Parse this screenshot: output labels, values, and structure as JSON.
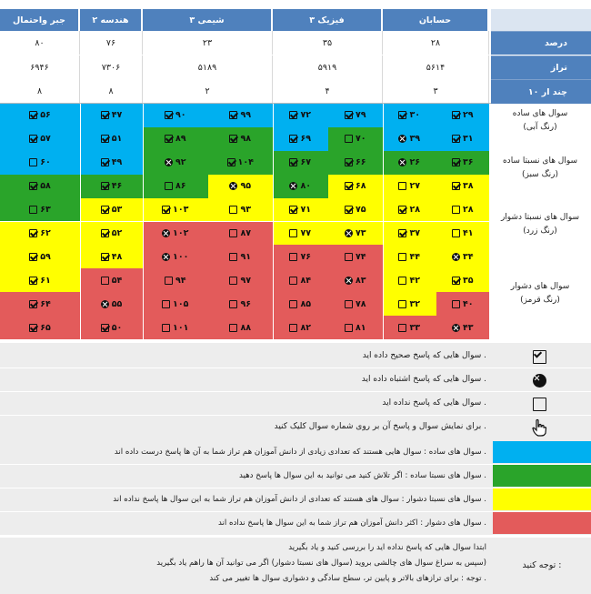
{
  "subjects": [
    "حسابان",
    "فیزیک ۳",
    "شیمی ۳",
    "هندسه ۲",
    "جبر واحتمال"
  ],
  "row_labels": [
    "درصد",
    "تراز",
    "چند ار ۱۰"
  ],
  "stats": {
    "percent": [
      "۲۸",
      "۳۵",
      "۲۳",
      "۷۶",
      "۸۰"
    ],
    "taraz": [
      "۵۶۱۴",
      "۵۹۱۹",
      "۵۱۸۹",
      "۷۳۰۶",
      "۶۹۴۶"
    ],
    "of10": [
      "۳",
      "۴",
      "۲",
      "۸",
      "۸"
    ]
  },
  "categories": [
    {
      "title": "سوال های ساده",
      "subtitle": "(رنگ آبی)"
    },
    {
      "title": "سوال های نسبتا ساده",
      "subtitle": "(رنگ سبز)"
    },
    {
      "title": "سوال های نسبتا دشوار",
      "subtitle": "(رنگ زرد)"
    },
    {
      "title": "سوال های دشوار",
      "subtitle": "(رنگ قرمز)"
    }
  ],
  "colors": {
    "blue": "#00b0f0",
    "green": "#2aa42a",
    "yellow": "#ffff00",
    "red": "#e35b5b",
    "header": "#4f81bd",
    "legend_bg": "#ededed"
  },
  "grid": [
    [
      [
        [
          "۲۹",
          "c",
          "B"
        ],
        [
          "۳۰",
          "c",
          "B"
        ]
      ],
      [
        [
          "۷۹",
          "c",
          "B"
        ],
        [
          "۷۲",
          "c",
          "B"
        ]
      ],
      [
        [
          "۹۹",
          "c",
          "B"
        ],
        [
          "۹۰",
          "c",
          "B"
        ]
      ],
      [
        [
          "۴۷",
          "c",
          "B"
        ]
      ],
      [
        [
          "۵۶",
          "c",
          "B"
        ]
      ]
    ],
    [
      [
        [
          "۳۱",
          "c",
          "B"
        ],
        [
          "۳۹",
          "w",
          "B"
        ]
      ],
      [
        [
          "۷۰",
          "e",
          "G"
        ],
        [
          "۶۹",
          "c",
          "B"
        ]
      ],
      [
        [
          "۹۸",
          "c",
          "G"
        ],
        [
          "۸۹",
          "c",
          "G"
        ]
      ],
      [
        [
          "۵۱",
          "c",
          "B"
        ]
      ],
      [
        [
          "۵۷",
          "c",
          "B"
        ]
      ]
    ],
    [
      [
        [
          "۳۶",
          "c",
          "G"
        ],
        [
          "۲۶",
          "w",
          "G"
        ]
      ],
      [
        [
          "۶۶",
          "c",
          "G"
        ],
        [
          "۶۷",
          "c",
          "G"
        ]
      ],
      [
        [
          "۱۰۴",
          "c",
          "G"
        ],
        [
          "۹۲",
          "w",
          "G"
        ]
      ],
      [
        [
          "۴۹",
          "c",
          "B"
        ]
      ],
      [
        [
          "۶۰",
          "e",
          "B"
        ]
      ]
    ],
    [
      [
        [
          "۳۸",
          "c",
          "Y"
        ],
        [
          "۲۷",
          "e",
          "Y"
        ]
      ],
      [
        [
          "۶۸",
          "c",
          "Y"
        ],
        [
          "۸۰",
          "w",
          "G"
        ]
      ],
      [
        [
          "۹۵",
          "w",
          "Y"
        ],
        [
          "۸۶",
          "e",
          "G"
        ]
      ],
      [
        [
          "۴۶",
          "c",
          "G"
        ]
      ],
      [
        [
          "۵۸",
          "c",
          "G"
        ]
      ]
    ],
    [
      [
        [
          "۲۸",
          "e",
          "Y"
        ],
        [
          "۲۸",
          "c",
          "Y"
        ]
      ],
      [
        [
          "۷۵",
          "c",
          "Y"
        ],
        [
          "۷۱",
          "c",
          "Y"
        ]
      ],
      [
        [
          "۹۳",
          "e",
          "Y"
        ],
        [
          "۱۰۳",
          "c",
          "Y"
        ]
      ],
      [
        [
          "۵۳",
          "c",
          "Y"
        ]
      ],
      [
        [
          "۶۳",
          "e",
          "G"
        ]
      ]
    ],
    [
      [
        [
          "۴۱",
          "e",
          "Y"
        ],
        [
          "۳۷",
          "c",
          "Y"
        ]
      ],
      [
        [
          "۷۳",
          "w",
          "Y"
        ],
        [
          "۷۷",
          "e",
          "Y"
        ]
      ],
      [
        [
          "۸۷",
          "e",
          "R"
        ],
        [
          "۱۰۲",
          "w",
          "R"
        ]
      ],
      [
        [
          "۵۲",
          "c",
          "Y"
        ]
      ],
      [
        [
          "۶۲",
          "c",
          "Y"
        ]
      ]
    ],
    [
      [
        [
          "۳۴",
          "w",
          "Y"
        ],
        [
          "۴۴",
          "e",
          "Y"
        ]
      ],
      [
        [
          "۷۴",
          "e",
          "R"
        ],
        [
          "۷۶",
          "e",
          "R"
        ]
      ],
      [
        [
          "۹۱",
          "e",
          "R"
        ],
        [
          "۱۰۰",
          "w",
          "R"
        ]
      ],
      [
        [
          "۴۸",
          "c",
          "Y"
        ]
      ],
      [
        [
          "۵۹",
          "c",
          "Y"
        ]
      ]
    ],
    [
      [
        [
          "۳۵",
          "c",
          "Y"
        ],
        [
          "۴۲",
          "e",
          "Y"
        ]
      ],
      [
        [
          "۸۳",
          "w",
          "R"
        ],
        [
          "۸۴",
          "e",
          "R"
        ]
      ],
      [
        [
          "۹۷",
          "e",
          "R"
        ],
        [
          "۹۴",
          "e",
          "R"
        ]
      ],
      [
        [
          "۵۴",
          "e",
          "R"
        ]
      ],
      [
        [
          "۶۱",
          "c",
          "Y"
        ]
      ]
    ],
    [
      [
        [
          "۴۰",
          "e",
          "R"
        ],
        [
          "۳۲",
          "e",
          "Y"
        ]
      ],
      [
        [
          "۷۸",
          "e",
          "R"
        ],
        [
          "۸۵",
          "e",
          "R"
        ]
      ],
      [
        [
          "۹۶",
          "e",
          "R"
        ],
        [
          "۱۰۵",
          "e",
          "R"
        ]
      ],
      [
        [
          "۵۵",
          "w",
          "R"
        ]
      ],
      [
        [
          "۶۴",
          "c",
          "R"
        ]
      ]
    ],
    [
      [
        [
          "۴۳",
          "w",
          "R"
        ],
        [
          "۳۳",
          "e",
          "R"
        ]
      ],
      [
        [
          "۸۱",
          "e",
          "R"
        ],
        [
          "۸۲",
          "e",
          "R"
        ]
      ],
      [
        [
          "۸۸",
          "e",
          "R"
        ],
        [
          "۱۰۱",
          "e",
          "R"
        ]
      ],
      [
        [
          "۵۰",
          "c",
          "R"
        ]
      ],
      [
        [
          "۶۵",
          "c",
          "R"
        ]
      ]
    ]
  ],
  "legend_icons": [
    {
      "icon": "checkbox-checked-icon",
      "text": "سوال هایی که پاسخ صحیح داده اید ."
    },
    {
      "icon": "circle-x-icon",
      "text": "سوال هایی که پاسخ اشتباه داده اید ."
    },
    {
      "icon": "empty-square-icon",
      "text": "سوال هایی که پاسخ نداده اید ."
    },
    {
      "icon": "hand-pointer-icon",
      "text": "برای نمایش سوال و پاسخ آن بر روی شماره سوال کلیک کنید ."
    }
  ],
  "legend_colors": [
    {
      "color": "#00b0f0",
      "text": "سوال های ساده : سوال هایی هستند که تعدادی زیادی از دانش آموزان هم تراز شما به آن ها پاسخ درست داده اند ."
    },
    {
      "color": "#2aa42a",
      "text": "سوال های نسبتا ساده : اگر تلاش کنید می توانید به این سوال ها پاسخ دهید ."
    },
    {
      "color": "#ffff00",
      "text": "سوال های نسبتا دشوار : سوال های هستند که تعدادی از دانش آموزان هم تراز شما به این سوال ها پاسخ نداده اند ."
    },
    {
      "color": "#e35b5b",
      "text": "سوال های دشوار : اکثر دانش آموزان هم تراز شما به این سوال ها پاسخ نداده اند ."
    }
  ],
  "note": {
    "label": "توجه کنید :",
    "lines": [
      "ابتدا سوال هایی که پاسخ نداده اید را بررسی کنید و یاد بگیرید",
      "سپس به سراغ سوال های چالشی بروید (سوال های نسبتا دشوار) اگر می توانید آن ها راهم یاد بگیرید)",
      "توجه : برای ترازهای بالاتر و پایین تر، سطح سادگی و دشواری سوال ها تغییر می کند ."
    ]
  }
}
